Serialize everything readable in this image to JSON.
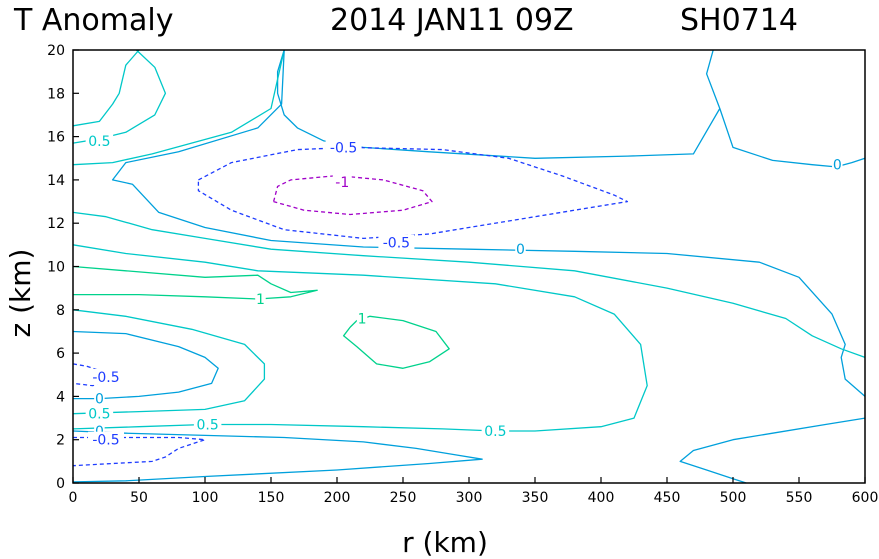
{
  "chart_data": {
    "type": "contour",
    "title": "T Anomaly",
    "date": "2014 JAN11 09Z",
    "storm_id": "SH0714",
    "xlabel": "r (km)",
    "ylabel": "z (km)",
    "xlim": [
      0,
      600
    ],
    "ylim": [
      0,
      20
    ],
    "xticks": [
      0,
      50,
      100,
      150,
      200,
      250,
      300,
      350,
      400,
      450,
      500,
      550,
      600
    ],
    "yticks": [
      0,
      2,
      4,
      6,
      8,
      10,
      12,
      14,
      16,
      18,
      20
    ],
    "grid": false,
    "contour_labels": [
      {
        "text": "0.5",
        "level": 0.5,
        "r": 20,
        "z": 15.8
      },
      {
        "text": "-0.5",
        "level": -0.5,
        "r": 205,
        "z": 15.5
      },
      {
        "text": "-1",
        "level": -1,
        "r": 204,
        "z": 13.9
      },
      {
        "text": "0",
        "level": 0,
        "r": 579,
        "z": 14.7
      },
      {
        "text": "-0.5",
        "level": -0.5,
        "r": 245,
        "z": 11.1
      },
      {
        "text": "0",
        "level": 0,
        "r": 339,
        "z": 10.8
      },
      {
        "text": "1",
        "level": 1,
        "r": 142,
        "z": 8.5
      },
      {
        "text": "1",
        "level": 1,
        "r": 219,
        "z": 7.6
      },
      {
        "text": "-0.5",
        "level": -0.5,
        "r": 25,
        "z": 4.9
      },
      {
        "text": "0",
        "level": 0,
        "r": 20,
        "z": 3.9
      },
      {
        "text": "0.5",
        "level": 0.5,
        "r": 20,
        "z": 3.2
      },
      {
        "text": "0.5",
        "level": 0.5,
        "r": 102,
        "z": 2.7
      },
      {
        "text": "0",
        "level": 0,
        "r": 20,
        "z": 2.4
      },
      {
        "text": "-0.5",
        "level": -0.5,
        "r": 25,
        "z": 2.0
      },
      {
        "text": "0.5",
        "level": 0.5,
        "r": 320,
        "z": 2.4
      }
    ],
    "contours": [
      {
        "level": 0.5,
        "points": [
          [
            0,
            15.7
          ],
          [
            20,
            15.9
          ],
          [
            40,
            16.2
          ],
          [
            62,
            17.0
          ],
          [
            70,
            18.0
          ],
          [
            62,
            19.2
          ],
          [
            48,
            20
          ]
        ]
      },
      {
        "level": 0,
        "points": [
          [
            160,
            20
          ],
          [
            155,
            19
          ],
          [
            155,
            18
          ],
          [
            160,
            17
          ],
          [
            170,
            16.4
          ],
          [
            190,
            15.8
          ],
          [
            220,
            15.5
          ],
          [
            270,
            15.3
          ],
          [
            350,
            15.0
          ],
          [
            420,
            15.1
          ],
          [
            470,
            15.2
          ],
          [
            490,
            17.3
          ],
          [
            480,
            18.9
          ],
          [
            485,
            20
          ]
        ]
      },
      {
        "level": 0,
        "points": [
          [
            600,
            15.0
          ],
          [
            590,
            14.8
          ],
          [
            578,
            14.6
          ],
          [
            560,
            14.7
          ],
          [
            530,
            14.9
          ],
          [
            500,
            15.5
          ],
          [
            490,
            17.3
          ]
        ]
      },
      {
        "level": 0.5,
        "points": [
          [
            50,
            20
          ],
          [
            40,
            19.3
          ],
          [
            35,
            18
          ],
          [
            30,
            17.5
          ],
          [
            20,
            16.7
          ],
          [
            0,
            16.5
          ]
        ]
      },
      {
        "level": 0.5,
        "points": [
          [
            160,
            20
          ],
          [
            150,
            17.3
          ],
          [
            120,
            16.2
          ],
          [
            60,
            15.2
          ],
          [
            30,
            14.8
          ],
          [
            0,
            14.7
          ]
        ]
      },
      {
        "level": 0,
        "points": [
          [
            160,
            20
          ],
          [
            158,
            17.5
          ],
          [
            140,
            16.4
          ],
          [
            80,
            15.3
          ],
          [
            40,
            14.8
          ],
          [
            30,
            14.0
          ],
          [
            45,
            13.8
          ],
          [
            65,
            12.5
          ],
          [
            100,
            11.8
          ],
          [
            150,
            11.2
          ],
          [
            220,
            10.9
          ],
          [
            300,
            10.8
          ],
          [
            380,
            10.7
          ],
          [
            450,
            10.6
          ],
          [
            520,
            10.2
          ],
          [
            550,
            9.5
          ],
          [
            575,
            7.8
          ],
          [
            585,
            6.4
          ],
          [
            582,
            5.8
          ],
          [
            585,
            4.8
          ],
          [
            600,
            4.0
          ]
        ]
      },
      {
        "level": -0.5,
        "points": [
          [
            95,
            14.0
          ],
          [
            120,
            14.8
          ],
          [
            170,
            15.4
          ],
          [
            210,
            15.5
          ],
          [
            280,
            15.4
          ],
          [
            330,
            15.0
          ],
          [
            370,
            14.2
          ],
          [
            410,
            13.3
          ],
          [
            420,
            13.0
          ],
          [
            380,
            12.6
          ],
          [
            330,
            12.1
          ],
          [
            270,
            11.5
          ],
          [
            220,
            11.3
          ],
          [
            160,
            11.7
          ],
          [
            120,
            12.6
          ],
          [
            95,
            13.5
          ],
          [
            95,
            14.0
          ]
        ]
      },
      {
        "level": -1,
        "points": [
          [
            152,
            13.0
          ],
          [
            155,
            13.7
          ],
          [
            165,
            14.0
          ],
          [
            200,
            14.2
          ],
          [
            235,
            14.0
          ],
          [
            265,
            13.5
          ],
          [
            272,
            13.0
          ],
          [
            250,
            12.6
          ],
          [
            210,
            12.4
          ],
          [
            175,
            12.6
          ],
          [
            152,
            13.0
          ]
        ]
      },
      {
        "level": 0.5,
        "points": [
          [
            0,
            12.5
          ],
          [
            25,
            12.3
          ],
          [
            60,
            11.7
          ],
          [
            100,
            11.3
          ],
          [
            150,
            10.8
          ],
          [
            220,
            10.5
          ],
          [
            300,
            10.2
          ],
          [
            380,
            9.8
          ],
          [
            450,
            9.0
          ],
          [
            500,
            8.3
          ],
          [
            540,
            7.6
          ],
          [
            560,
            6.8
          ],
          [
            582,
            6.2
          ],
          [
            600,
            5.8
          ]
        ]
      },
      {
        "level": 0.5,
        "points": [
          [
            0,
            11.0
          ],
          [
            40,
            10.6
          ],
          [
            100,
            10.2
          ],
          [
            140,
            9.8
          ],
          [
            220,
            9.6
          ],
          [
            320,
            9.2
          ],
          [
            380,
            8.6
          ],
          [
            410,
            7.8
          ],
          [
            430,
            6.4
          ],
          [
            435,
            4.5
          ],
          [
            425,
            3.0
          ],
          [
            400,
            2.6
          ],
          [
            350,
            2.4
          ],
          [
            320,
            2.4
          ],
          [
            280,
            2.5
          ],
          [
            220,
            2.6
          ],
          [
            150,
            2.7
          ],
          [
            100,
            2.7
          ],
          [
            50,
            2.6
          ],
          [
            0,
            2.5
          ]
        ]
      },
      {
        "level": 1,
        "points": [
          [
            0,
            10.0
          ],
          [
            40,
            9.8
          ],
          [
            100,
            9.5
          ],
          [
            140,
            9.6
          ],
          [
            150,
            9.2
          ],
          [
            165,
            8.8
          ],
          [
            185,
            8.9
          ],
          [
            165,
            8.6
          ],
          [
            140,
            8.5
          ],
          [
            100,
            8.6
          ],
          [
            50,
            8.7
          ],
          [
            0,
            8.7
          ]
        ]
      },
      {
        "level": 1,
        "points": [
          [
            210,
            7.2
          ],
          [
            215,
            7.5
          ],
          [
            225,
            7.7
          ],
          [
            250,
            7.5
          ],
          [
            275,
            7.0
          ],
          [
            285,
            6.2
          ],
          [
            270,
            5.6
          ],
          [
            250,
            5.3
          ],
          [
            230,
            5.5
          ],
          [
            215,
            6.3
          ],
          [
            205,
            6.8
          ],
          [
            210,
            7.2
          ]
        ]
      },
      {
        "level": 0.5,
        "points": [
          [
            0,
            8.0
          ],
          [
            40,
            7.7
          ],
          [
            90,
            7.1
          ],
          [
            130,
            6.4
          ],
          [
            145,
            5.5
          ],
          [
            145,
            4.8
          ],
          [
            130,
            3.8
          ],
          [
            100,
            3.4
          ],
          [
            50,
            3.3
          ],
          [
            0,
            3.2
          ]
        ]
      },
      {
        "level": 0,
        "points": [
          [
            0,
            7.0
          ],
          [
            40,
            6.9
          ],
          [
            80,
            6.3
          ],
          [
            100,
            5.8
          ],
          [
            110,
            5.3
          ],
          [
            105,
            4.6
          ],
          [
            80,
            4.2
          ],
          [
            50,
            4.0
          ],
          [
            20,
            3.9
          ],
          [
            0,
            3.9
          ]
        ]
      },
      {
        "level": -0.5,
        "points": [
          [
            0,
            5.5
          ],
          [
            10,
            5.4
          ],
          [
            20,
            5.2
          ],
          [
            30,
            5.0
          ],
          [
            25,
            4.7
          ],
          [
            15,
            4.5
          ],
          [
            0,
            4.6
          ]
        ]
      },
      {
        "level": 0,
        "points": [
          [
            0,
            2.4
          ],
          [
            40,
            2.3
          ],
          [
            100,
            2.2
          ],
          [
            160,
            2.1
          ],
          [
            220,
            1.9
          ],
          [
            260,
            1.6
          ],
          [
            290,
            1.3
          ],
          [
            310,
            1.1
          ],
          [
            270,
            0.9
          ],
          [
            200,
            0.6
          ],
          [
            100,
            0.3
          ],
          [
            40,
            0.1
          ],
          [
            0,
            0.05
          ]
        ]
      },
      {
        "level": -0.5,
        "points": [
          [
            0,
            2.1
          ],
          [
            40,
            2.1
          ],
          [
            80,
            2.1
          ],
          [
            100,
            2.0
          ],
          [
            80,
            1.6
          ],
          [
            70,
            1.2
          ],
          [
            60,
            1.0
          ],
          [
            30,
            0.9
          ],
          [
            0,
            0.8
          ]
        ]
      },
      {
        "level": 0,
        "points": [
          [
            600,
            3.0
          ],
          [
            570,
            2.7
          ],
          [
            530,
            2.3
          ],
          [
            500,
            2.0
          ],
          [
            470,
            1.5
          ],
          [
            460,
            1.0
          ],
          [
            480,
            0.6
          ],
          [
            500,
            0.2
          ],
          [
            510,
            0
          ]
        ]
      }
    ]
  },
  "colors": {
    "neg1": "#a000c8",
    "neg05": "#1e3cff",
    "zero": "#00a0dc",
    "pos05": "#00c8c8",
    "pos1": "#00d28c",
    "axis": "#000000"
  }
}
